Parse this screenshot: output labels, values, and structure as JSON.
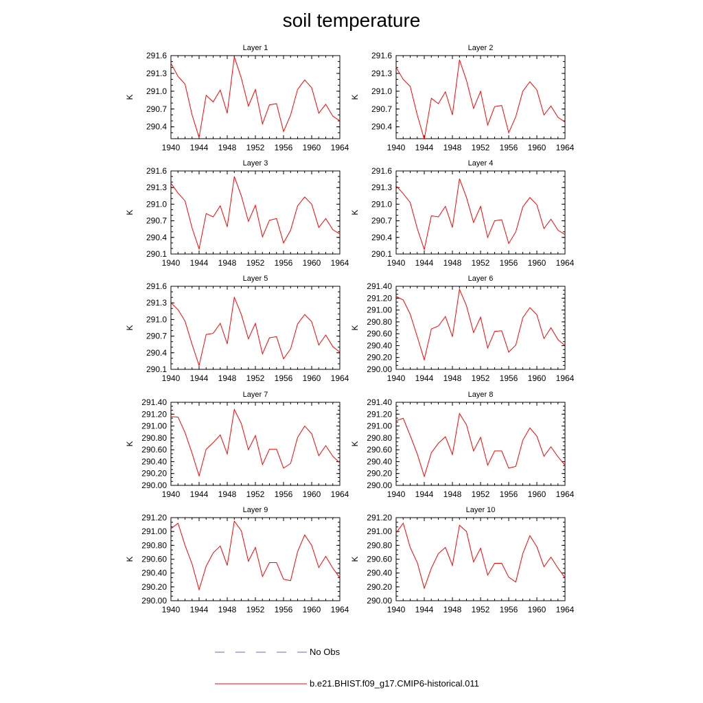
{
  "page": {
    "title": "soil temperature"
  },
  "colors": {
    "model_line": "#ff0000",
    "obs_line": "#6666cc",
    "axis": "#000000"
  },
  "legend": {
    "items": [
      {
        "label": "No Obs",
        "style": "dashed",
        "color": "#6666cc"
      },
      {
        "label": "b.e21.BHIST.f09_g17.CMIP6-historical.011",
        "style": "solid",
        "color": "#ff0000"
      }
    ]
  },
  "chart_data": [
    {
      "type": "line",
      "title": "Layer 1",
      "ylabel": "K",
      "xlim": [
        1940,
        1964
      ],
      "ylim": [
        290.2,
        291.6
      ],
      "xticks": [
        "1940",
        "1944",
        "1948",
        "1952",
        "1956",
        "1960",
        "1964"
      ],
      "yticks": [
        "290.4",
        "290.7",
        "291.0",
        "291.3",
        "291.6"
      ],
      "x": [
        1940,
        1941,
        1942,
        1943,
        1944,
        1945,
        1946,
        1947,
        1948,
        1949,
        1950,
        1951,
        1952,
        1953,
        1954,
        1955,
        1956,
        1957,
        1958,
        1959,
        1960,
        1961,
        1962,
        1963,
        1964
      ],
      "series": [
        {
          "values": [
            291.47,
            291.25,
            291.12,
            290.6,
            290.22,
            290.93,
            290.82,
            291.02,
            290.63,
            291.58,
            291.22,
            290.75,
            291.03,
            290.45,
            290.77,
            290.79,
            290.32,
            290.6,
            291.03,
            291.19,
            291.06,
            290.63,
            290.78,
            290.58,
            290.5
          ]
        }
      ]
    },
    {
      "type": "line",
      "title": "Layer 2",
      "ylabel": "K",
      "xlim": [
        1940,
        1964
      ],
      "ylim": [
        290.2,
        291.6
      ],
      "xticks": [
        "1940",
        "1944",
        "1948",
        "1952",
        "1956",
        "1960",
        "1964"
      ],
      "yticks": [
        "290.4",
        "290.7",
        "291.0",
        "291.3",
        "291.6"
      ],
      "x": [
        1940,
        1941,
        1942,
        1943,
        1944,
        1945,
        1946,
        1947,
        1948,
        1949,
        1950,
        1951,
        1952,
        1953,
        1954,
        1955,
        1956,
        1957,
        1958,
        1959,
        1960,
        1961,
        1962,
        1963,
        1964
      ],
      "series": [
        {
          "values": [
            291.4,
            291.2,
            291.08,
            290.6,
            290.19,
            290.88,
            290.79,
            290.99,
            290.6,
            291.53,
            291.18,
            290.71,
            291.0,
            290.43,
            290.74,
            290.76,
            290.3,
            290.57,
            291.0,
            291.16,
            291.02,
            290.6,
            290.75,
            290.56,
            290.48
          ]
        }
      ]
    },
    {
      "type": "line",
      "title": "Layer 3",
      "ylabel": "K",
      "xlim": [
        1940,
        1964
      ],
      "ylim": [
        290.1,
        291.6
      ],
      "xticks": [
        "1940",
        "1944",
        "1948",
        "1952",
        "1956",
        "1960",
        "1964"
      ],
      "yticks": [
        "290.1",
        "290.4",
        "290.7",
        "291.0",
        "291.3",
        "291.6"
      ],
      "x": [
        1940,
        1941,
        1942,
        1943,
        1944,
        1945,
        1946,
        1947,
        1948,
        1949,
        1950,
        1951,
        1952,
        1953,
        1954,
        1955,
        1956,
        1957,
        1958,
        1959,
        1960,
        1961,
        1962,
        1963,
        1964
      ],
      "series": [
        {
          "values": [
            291.38,
            291.2,
            291.06,
            290.57,
            290.19,
            290.83,
            290.77,
            290.97,
            290.59,
            291.5,
            291.15,
            290.69,
            290.98,
            290.41,
            290.71,
            290.74,
            290.3,
            290.53,
            290.97,
            291.13,
            291.0,
            290.58,
            290.74,
            290.54,
            290.46
          ]
        }
      ]
    },
    {
      "type": "line",
      "title": "Layer 4",
      "ylabel": "K",
      "xlim": [
        1940,
        1964
      ],
      "ylim": [
        290.1,
        291.6
      ],
      "xticks": [
        "1940",
        "1944",
        "1948",
        "1952",
        "1956",
        "1960",
        "1964"
      ],
      "yticks": [
        "290.1",
        "290.4",
        "290.7",
        "291.0",
        "291.3",
        "291.6"
      ],
      "x": [
        1940,
        1941,
        1942,
        1943,
        1944,
        1945,
        1946,
        1947,
        1948,
        1949,
        1950,
        1951,
        1952,
        1953,
        1954,
        1955,
        1956,
        1957,
        1958,
        1959,
        1960,
        1961,
        1962,
        1963,
        1964
      ],
      "series": [
        {
          "values": [
            291.33,
            291.19,
            291.03,
            290.56,
            290.18,
            290.79,
            290.77,
            290.96,
            290.58,
            291.46,
            291.12,
            290.67,
            290.96,
            290.4,
            290.7,
            290.72,
            290.29,
            290.5,
            290.95,
            291.12,
            290.99,
            290.56,
            290.73,
            290.53,
            290.45
          ]
        }
      ]
    },
    {
      "type": "line",
      "title": "Layer 5",
      "ylabel": "K",
      "xlim": [
        1940,
        1964
      ],
      "ylim": [
        290.1,
        291.6
      ],
      "xticks": [
        "1940",
        "1944",
        "1948",
        "1952",
        "1956",
        "1960",
        "1964"
      ],
      "yticks": [
        "290.1",
        "290.4",
        "290.7",
        "291.0",
        "291.3",
        "291.6"
      ],
      "x": [
        1940,
        1941,
        1942,
        1943,
        1944,
        1945,
        1946,
        1947,
        1948,
        1949,
        1950,
        1951,
        1952,
        1953,
        1954,
        1955,
        1956,
        1957,
        1958,
        1959,
        1960,
        1961,
        1962,
        1963,
        1964
      ],
      "series": [
        {
          "values": [
            291.3,
            291.18,
            290.97,
            290.55,
            290.17,
            290.73,
            290.75,
            290.93,
            290.56,
            291.4,
            291.09,
            290.65,
            290.93,
            290.38,
            290.67,
            290.69,
            290.29,
            290.47,
            290.92,
            291.09,
            290.96,
            290.54,
            290.72,
            290.51,
            290.41
          ]
        }
      ]
    },
    {
      "type": "line",
      "title": "Layer 6",
      "ylabel": "K",
      "xlim": [
        1940,
        1964
      ],
      "ylim": [
        290.0,
        291.4
      ],
      "xticks": [
        "1940",
        "1944",
        "1948",
        "1952",
        "1956",
        "1960",
        "1964"
      ],
      "yticks": [
        "290.00",
        "290.20",
        "290.40",
        "290.60",
        "290.80",
        "291.00",
        "291.20",
        "291.40"
      ],
      "x": [
        1940,
        1941,
        1942,
        1943,
        1944,
        1945,
        1946,
        1947,
        1948,
        1949,
        1950,
        1951,
        1952,
        1953,
        1954,
        1955,
        1956,
        1957,
        1958,
        1959,
        1960,
        1961,
        1962,
        1963,
        1964
      ],
      "series": [
        {
          "values": [
            291.23,
            291.17,
            290.93,
            290.55,
            290.16,
            290.68,
            290.73,
            290.89,
            290.55,
            291.35,
            291.07,
            290.62,
            290.88,
            290.36,
            290.64,
            290.65,
            290.29,
            290.41,
            290.87,
            291.04,
            290.92,
            290.52,
            290.7,
            290.5,
            290.4
          ]
        }
      ]
    },
    {
      "type": "line",
      "title": "Layer 7",
      "ylabel": "K",
      "xlim": [
        1940,
        1964
      ],
      "ylim": [
        290.0,
        291.4
      ],
      "xticks": [
        "1940",
        "1944",
        "1948",
        "1952",
        "1956",
        "1960",
        "1964"
      ],
      "yticks": [
        "290.00",
        "290.20",
        "290.40",
        "290.60",
        "290.80",
        "291.00",
        "291.20",
        "291.40"
      ],
      "x": [
        1940,
        1941,
        1942,
        1943,
        1944,
        1945,
        1946,
        1947,
        1948,
        1949,
        1950,
        1951,
        1952,
        1953,
        1954,
        1955,
        1956,
        1957,
        1958,
        1959,
        1960,
        1961,
        1962,
        1963,
        1964
      ],
      "series": [
        {
          "values": [
            291.16,
            291.15,
            290.89,
            290.54,
            290.16,
            290.61,
            290.72,
            290.85,
            290.53,
            291.28,
            291.04,
            290.6,
            290.84,
            290.35,
            290.61,
            290.61,
            290.29,
            290.37,
            290.81,
            291.0,
            290.87,
            290.5,
            290.67,
            290.49,
            290.38
          ]
        }
      ]
    },
    {
      "type": "line",
      "title": "Layer 8",
      "ylabel": "K",
      "xlim": [
        1940,
        1964
      ],
      "ylim": [
        290.0,
        291.4
      ],
      "xticks": [
        "1940",
        "1944",
        "1948",
        "1952",
        "1956",
        "1960",
        "1964"
      ],
      "yticks": [
        "290.00",
        "290.20",
        "290.40",
        "290.60",
        "290.80",
        "291.00",
        "291.20",
        "291.40"
      ],
      "x": [
        1940,
        1941,
        1942,
        1943,
        1944,
        1945,
        1946,
        1947,
        1948,
        1949,
        1950,
        1951,
        1952,
        1953,
        1954,
        1955,
        1956,
        1957,
        1958,
        1959,
        1960,
        1961,
        1962,
        1963,
        1964
      ],
      "series": [
        {
          "values": [
            291.09,
            291.13,
            290.84,
            290.53,
            290.15,
            290.55,
            290.71,
            290.82,
            290.52,
            291.21,
            291.02,
            290.58,
            290.81,
            290.34,
            290.58,
            290.58,
            290.29,
            290.32,
            290.76,
            290.97,
            290.83,
            290.49,
            290.65,
            290.48,
            290.34
          ]
        }
      ]
    },
    {
      "type": "line",
      "title": "Layer 9",
      "ylabel": "K",
      "xlim": [
        1940,
        1964
      ],
      "ylim": [
        290.0,
        291.2
      ],
      "xticks": [
        "1940",
        "1944",
        "1948",
        "1952",
        "1956",
        "1960",
        "1964"
      ],
      "yticks": [
        "290.00",
        "290.20",
        "290.40",
        "290.60",
        "290.80",
        "291.00",
        "291.20"
      ],
      "x": [
        1940,
        1941,
        1942,
        1943,
        1944,
        1945,
        1946,
        1947,
        1948,
        1949,
        1950,
        1951,
        1952,
        1953,
        1954,
        1955,
        1956,
        1957,
        1958,
        1959,
        1960,
        1961,
        1962,
        1963,
        1964
      ],
      "series": [
        {
          "values": [
            291.04,
            291.12,
            290.8,
            290.53,
            290.16,
            290.5,
            290.69,
            290.79,
            290.51,
            291.15,
            291.01,
            290.57,
            290.77,
            290.35,
            290.55,
            290.55,
            290.31,
            290.29,
            290.71,
            290.95,
            290.8,
            290.48,
            290.64,
            290.47,
            290.33
          ]
        }
      ]
    },
    {
      "type": "line",
      "title": "Layer 10",
      "ylabel": "K",
      "xlim": [
        1940,
        1964
      ],
      "ylim": [
        290.0,
        291.2
      ],
      "xticks": [
        "1940",
        "1944",
        "1948",
        "1952",
        "1956",
        "1960",
        "1964"
      ],
      "yticks": [
        "290.00",
        "290.20",
        "290.40",
        "290.60",
        "290.80",
        "291.00",
        "291.20"
      ],
      "x": [
        1940,
        1941,
        1942,
        1943,
        1944,
        1945,
        1946,
        1947,
        1948,
        1949,
        1950,
        1951,
        1952,
        1953,
        1954,
        1955,
        1956,
        1957,
        1958,
        1959,
        1960,
        1961,
        1962,
        1963,
        1964
      ],
      "series": [
        {
          "values": [
            290.98,
            291.12,
            290.77,
            290.55,
            290.18,
            290.47,
            290.68,
            290.77,
            290.51,
            291.09,
            291.0,
            290.56,
            290.76,
            290.37,
            290.54,
            290.54,
            290.34,
            290.27,
            290.68,
            290.94,
            290.78,
            290.49,
            290.63,
            290.47,
            290.33
          ]
        }
      ]
    }
  ]
}
